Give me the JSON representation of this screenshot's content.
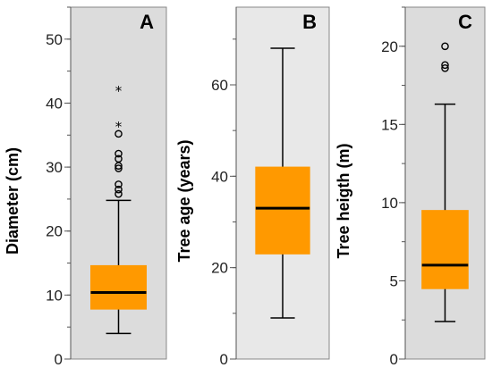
{
  "chart_data": [
    {
      "type": "boxplot",
      "panel_label": "A",
      "ylabel": "Diameter (cm)",
      "ylim": [
        0,
        55
      ],
      "yticks": [
        0,
        10,
        20,
        30,
        40,
        50
      ],
      "minor_ticks": true,
      "background": "#dcdcdc",
      "box": {
        "whisker_low": 4,
        "q1": 7.8,
        "median": 10.4,
        "q3": 14.6,
        "whisker_high": 24.8
      },
      "outliers": [
        25.8,
        26.5,
        27.3,
        29.8,
        30.2,
        31.3,
        32.1,
        35.2
      ],
      "extremes": [
        36.4,
        42.0
      ]
    },
    {
      "type": "boxplot",
      "panel_label": "B",
      "ylabel": "Tree age (years)",
      "ylim": [
        0,
        77
      ],
      "yticks": [
        0,
        20,
        40,
        60
      ],
      "minor_ticks": true,
      "background": "#e8e8e8",
      "box": {
        "whisker_low": 9,
        "q1": 23,
        "median": 33,
        "q3": 42,
        "whisker_high": 68
      },
      "outliers": [],
      "extremes": []
    },
    {
      "type": "boxplot",
      "panel_label": "C",
      "ylabel": "Tree heigth (m)",
      "ylim": [
        0,
        22.5
      ],
      "yticks": [
        0,
        5,
        10,
        15,
        20
      ],
      "minor_ticks": true,
      "background": "#dcdcdc",
      "box": {
        "whisker_low": 2.4,
        "q1": 4.5,
        "median": 6.0,
        "q3": 9.5,
        "whisker_high": 16.3
      },
      "outliers": [
        18.6,
        18.8,
        20.0
      ],
      "extremes": []
    }
  ],
  "colors": {
    "box_fill": "#ff9900",
    "stroke": "#000000",
    "axis": "#555555"
  }
}
